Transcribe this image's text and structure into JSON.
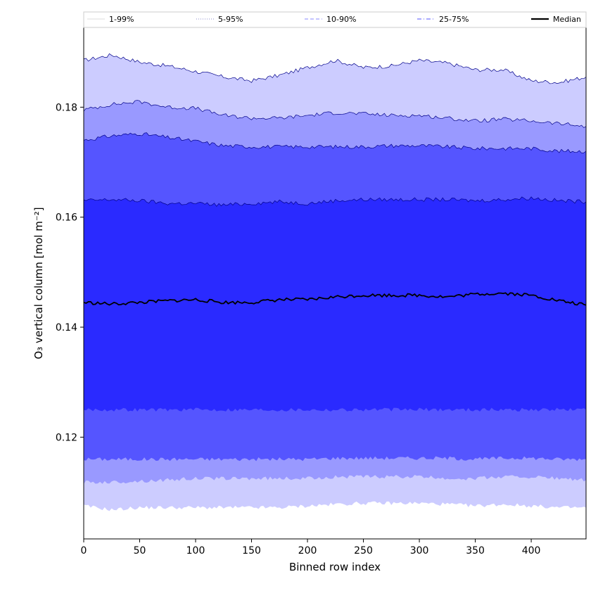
{
  "chart_data": {
    "type": "area",
    "title": "",
    "xlabel": "Binned row index",
    "ylabel": "O₃ vertical column [mol m⁻²]",
    "xlim": [
      0,
      449
    ],
    "ylim": [
      0.1015,
      0.1945
    ],
    "x_ticks": [
      0,
      50,
      100,
      150,
      200,
      250,
      300,
      350,
      400
    ],
    "y_ticks": [
      0.12,
      0.14,
      0.16,
      0.18
    ],
    "y_tick_labels": [
      "0.12",
      "0.14",
      "0.16",
      "0.18"
    ],
    "grid": false,
    "legend_position": "top, above plot",
    "x": [
      0,
      25,
      50,
      75,
      100,
      125,
      150,
      175,
      200,
      225,
      250,
      275,
      300,
      325,
      350,
      375,
      400,
      425,
      449
    ],
    "bands": [
      {
        "name": "1-99%",
        "color": "#ccccff",
        "line_style": "solid",
        "upper": [
          0.1885,
          0.1895,
          0.1882,
          0.1875,
          0.1865,
          0.1855,
          0.1848,
          0.1858,
          0.1872,
          0.1885,
          0.1872,
          0.1875,
          0.1885,
          0.188,
          0.1868,
          0.1868,
          0.1848,
          0.1845,
          0.1855
        ],
        "lower": [
          0.1075,
          0.1068,
          0.1072,
          0.1072,
          0.1072,
          0.1072,
          0.1072,
          0.1072,
          0.1075,
          0.1078,
          0.108,
          0.108,
          0.108,
          0.1078,
          0.1075,
          0.1078,
          0.1075,
          0.1072,
          0.1072
        ]
      },
      {
        "name": "5-95%",
        "color": "#9999ff",
        "line_style": "dotted",
        "upper": [
          0.1795,
          0.1805,
          0.181,
          0.18,
          0.1798,
          0.1785,
          0.178,
          0.178,
          0.1785,
          0.179,
          0.1788,
          0.1785,
          0.1785,
          0.178,
          0.1775,
          0.1778,
          0.1775,
          0.177,
          0.1765
        ],
        "lower": [
          0.1118,
          0.1118,
          0.112,
          0.1122,
          0.1125,
          0.1125,
          0.1125,
          0.1125,
          0.1125,
          0.1128,
          0.1128,
          0.1128,
          0.1128,
          0.1125,
          0.1125,
          0.1128,
          0.1128,
          0.1125,
          0.1122
        ]
      },
      {
        "name": "10-90%",
        "color": "#5555ff",
        "line_style": "dashed",
        "upper": [
          0.174,
          0.1748,
          0.1752,
          0.1745,
          0.1738,
          0.173,
          0.1728,
          0.1728,
          0.1728,
          0.1728,
          0.1728,
          0.173,
          0.173,
          0.1728,
          0.1725,
          0.1725,
          0.1725,
          0.172,
          0.172
        ],
        "lower": [
          0.116,
          0.116,
          0.116,
          0.116,
          0.116,
          0.116,
          0.116,
          0.116,
          0.116,
          0.1162,
          0.1162,
          0.1162,
          0.1162,
          0.1162,
          0.116,
          0.1162,
          0.1162,
          0.116,
          0.116
        ]
      },
      {
        "name": "25-75%",
        "color": "#2a2aff",
        "line_style": "dashdot",
        "upper": [
          0.163,
          0.1632,
          0.163,
          0.1625,
          0.1625,
          0.1622,
          0.1625,
          0.1628,
          0.1625,
          0.163,
          0.1632,
          0.1632,
          0.1632,
          0.1632,
          0.163,
          0.1632,
          0.1635,
          0.163,
          0.1628
        ],
        "lower": [
          0.125,
          0.125,
          0.125,
          0.125,
          0.125,
          0.125,
          0.125,
          0.125,
          0.125,
          0.125,
          0.125,
          0.125,
          0.125,
          0.125,
          0.125,
          0.125,
          0.125,
          0.125,
          0.125
        ]
      }
    ],
    "series": [
      {
        "name": "Median",
        "color": "#000000",
        "values": [
          0.1445,
          0.1442,
          0.1445,
          0.1448,
          0.145,
          0.1445,
          0.1445,
          0.145,
          0.145,
          0.1455,
          0.1458,
          0.1458,
          0.1458,
          0.1455,
          0.146,
          0.1462,
          0.1458,
          0.1448,
          0.144
        ]
      }
    ]
  }
}
